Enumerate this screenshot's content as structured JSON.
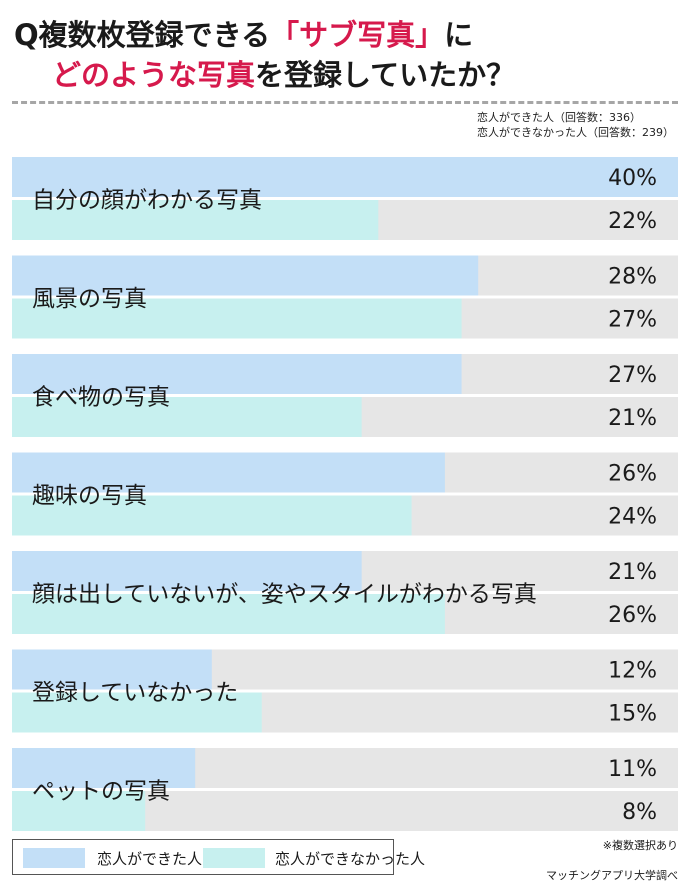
{
  "title": {
    "line1_prefix": "Q複数枚登録できる",
    "line1_accent": "「サブ写真」",
    "line1_suffix": "に",
    "line2_accent": "どのような写真",
    "line2_suffix": "を登録していたか？"
  },
  "counts": {
    "line1": "恋人ができた人（回答数：336）",
    "line2": "恋人ができなかった人（回答数：239）"
  },
  "colors": {
    "series1": "#c3dff7",
    "series2": "#c7f0ef",
    "track": "#e6e6e6",
    "accent": "#d6194c"
  },
  "chart_data": {
    "type": "bar",
    "orientation": "horizontal",
    "categories": [
      "自分の顔がわかる写真",
      "風景の写真",
      "食べ物の写真",
      "趣味の写真",
      "顔は出していないが、姿やスタイルがわかる写真",
      "登録していなかった",
      "ペットの写真"
    ],
    "series": [
      {
        "name": "恋人ができた人",
        "values": [
          40,
          28,
          27,
          26,
          21,
          12,
          11
        ],
        "labels": [
          "40%",
          "28%",
          "27%",
          "26%",
          "21%",
          "12%",
          "11%"
        ]
      },
      {
        "name": "恋人ができなかった人",
        "values": [
          22,
          27,
          21,
          24,
          26,
          15,
          8
        ],
        "labels": [
          "22%",
          "27%",
          "21%",
          "24%",
          "26%",
          "15%",
          "8%"
        ]
      }
    ],
    "xlim": [
      0,
      40
    ],
    "unit": "%"
  },
  "legend": {
    "series1": "恋人ができた人",
    "series2": "恋人ができなかった人"
  },
  "note": "※複数選択あり",
  "source": "マッチングアプリ大学調べ"
}
